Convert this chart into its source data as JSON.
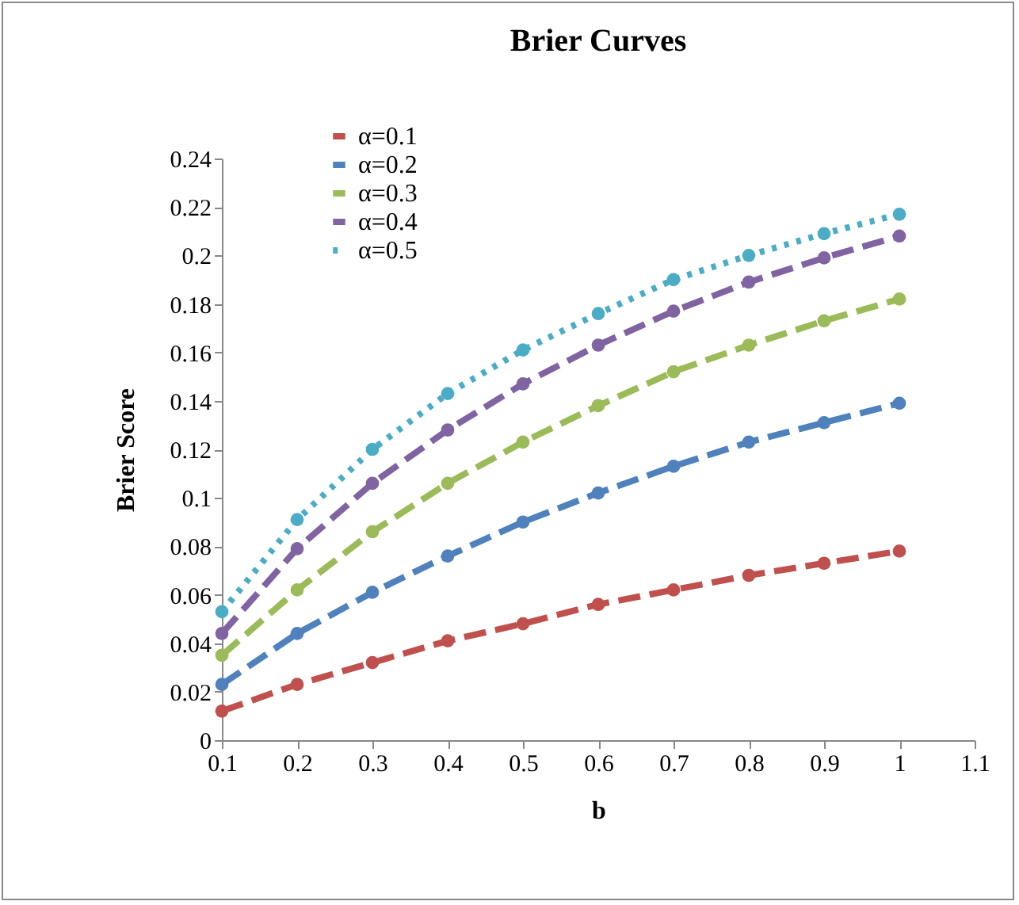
{
  "chart_data": {
    "type": "line",
    "title": "Brier Curves",
    "xlabel": "b",
    "ylabel": "Brier Score",
    "x": [
      0.1,
      0.2,
      0.3,
      0.4,
      0.5,
      0.6,
      0.7,
      0.8,
      0.9,
      1
    ],
    "series": [
      {
        "name": "α=0.1",
        "color": "#c0504d",
        "line_style": "dashed",
        "values": [
          0.012,
          0.023,
          0.032,
          0.041,
          0.048,
          0.056,
          0.062,
          0.068,
          0.073,
          0.078
        ]
      },
      {
        "name": "α=0.2",
        "color": "#4f81bd",
        "line_style": "dashed",
        "values": [
          0.023,
          0.044,
          0.061,
          0.076,
          0.09,
          0.102,
          0.113,
          0.123,
          0.131,
          0.139
        ]
      },
      {
        "name": "α=0.3",
        "color": "#9bbb59",
        "line_style": "dashed",
        "values": [
          0.035,
          0.062,
          0.086,
          0.106,
          0.123,
          0.138,
          0.152,
          0.163,
          0.173,
          0.182
        ]
      },
      {
        "name": "α=0.4",
        "color": "#8064a2",
        "line_style": "dashed",
        "values": [
          0.044,
          0.079,
          0.106,
          0.128,
          0.147,
          0.163,
          0.177,
          0.189,
          0.199,
          0.208
        ]
      },
      {
        "name": "α=0.5",
        "color": "#4bacc6",
        "line_style": "dotted",
        "values": [
          0.053,
          0.091,
          0.12,
          0.143,
          0.161,
          0.176,
          0.19,
          0.2,
          0.209,
          0.217
        ]
      }
    ],
    "xlim": [
      0.1,
      1.1
    ],
    "xticks": [
      0.1,
      0.2,
      0.3,
      0.4,
      0.5,
      0.6,
      0.7,
      0.8,
      0.9,
      1,
      1.1
    ],
    "ylim": [
      0,
      0.24
    ],
    "yticks": [
      0,
      0.02,
      0.04,
      0.06,
      0.08,
      0.1,
      0.12,
      0.14,
      0.16,
      0.18,
      0.2,
      0.22,
      0.24
    ],
    "grid": false,
    "legend": "top left",
    "marker": "circle"
  }
}
